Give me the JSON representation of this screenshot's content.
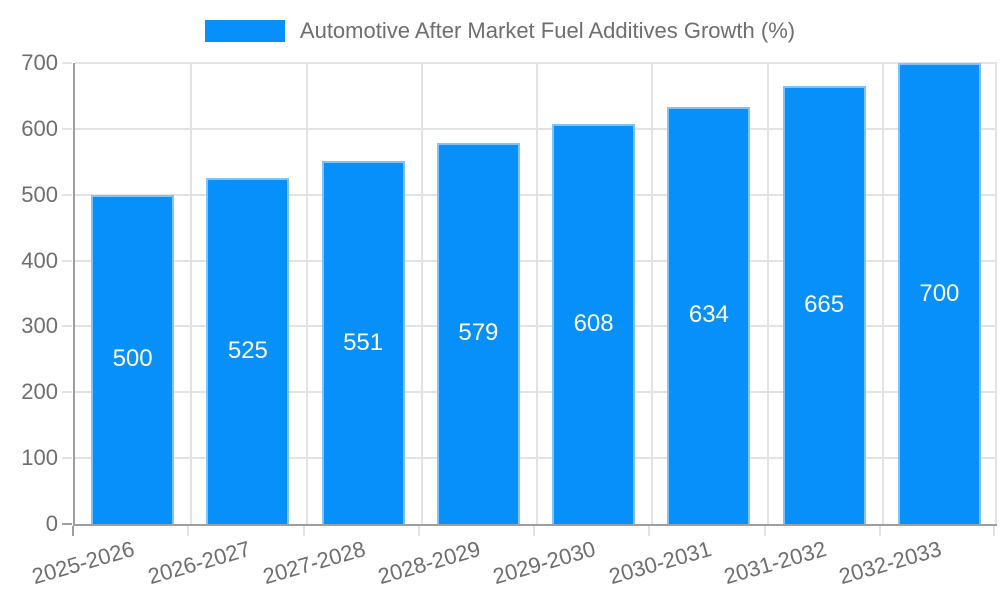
{
  "chart_data": {
    "type": "bar",
    "legend_label": "Automotive After Market Fuel Additives Growth (%)",
    "categories": [
      "2025-2026",
      "2026-2027",
      "2027-2028",
      "2028-2029",
      "2029-2030",
      "2030-2031",
      "2031-2032",
      "2032-2033"
    ],
    "values": [
      500,
      525,
      551,
      579,
      608,
      634,
      665,
      700
    ],
    "title": "",
    "xlabel": "",
    "ylabel": "",
    "ylim": [
      0,
      700
    ],
    "yticks": [
      0,
      100,
      200,
      300,
      400,
      500,
      600,
      700
    ],
    "grid": true,
    "legend_position": "top",
    "value_label_position": "inside-center"
  },
  "colors": {
    "bar_fill": "#0890fa",
    "bar_border": "#82c2f9",
    "grid_line": "#e3e3e3",
    "axis_line": "#9e9e9e",
    "tick_text": "#6e6e6e",
    "legend_text": "#6e6e6e",
    "bar_label_text": "#ffffff"
  }
}
